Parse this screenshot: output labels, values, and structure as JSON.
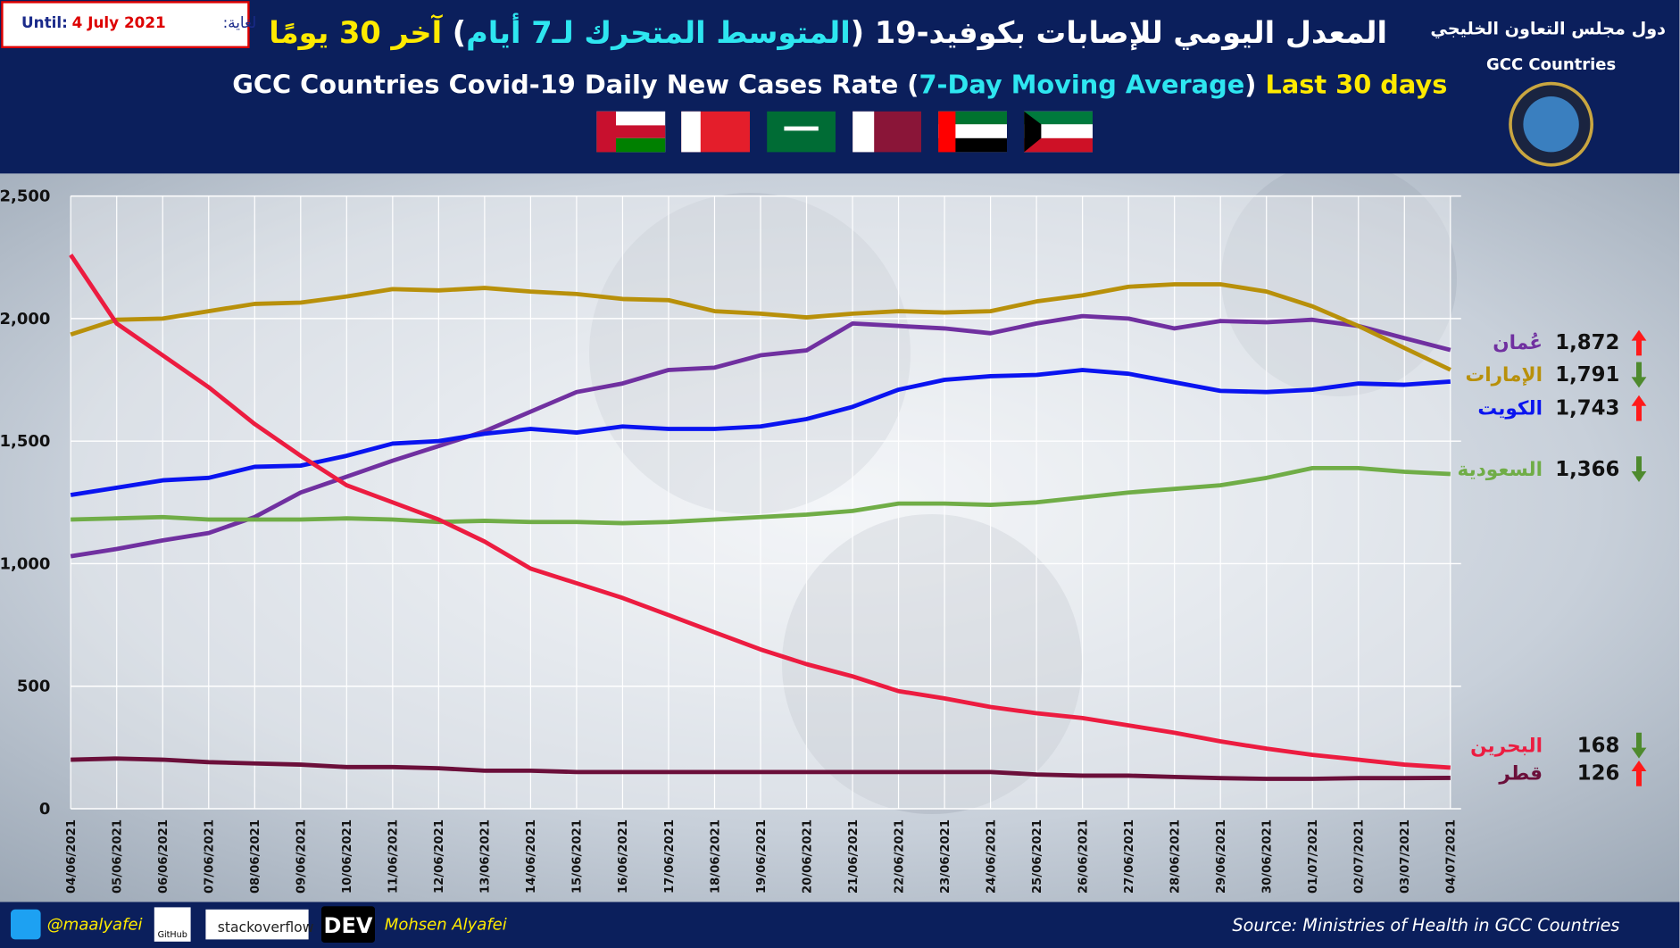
{
  "header": {
    "until_label": "Until:",
    "until_date": "4 July 2021",
    "until_label_ar": "لغاية:",
    "title_ar": [
      "المعدل اليومي للإصابات بكوفيد-19 (",
      "المتوسط المتحرك لـ7 أيام",
      ")",
      " آخر 30 يومًا"
    ],
    "title_en": [
      "GCC Countries Covid-19 Daily New Cases Rate (",
      "7-Day Moving Average",
      ")",
      " Last 30 days"
    ],
    "org_ar": "دول مجلس التعاون الخليجي",
    "org_en": "GCC Countries"
  },
  "footer": {
    "twitter": "@maalyafei",
    "github": "GitHub",
    "stackoverflow": "stackoverflow",
    "dev": "DEV",
    "author": "Mohsen Alyafei",
    "source": "Source: Ministries of Health in GCC Countries"
  },
  "chart_data": {
    "type": "line",
    "x": [
      "04/06/2021",
      "05/06/2021",
      "06/06/2021",
      "07/06/2021",
      "08/06/2021",
      "09/06/2021",
      "10/06/2021",
      "11/06/2021",
      "12/06/2021",
      "13/06/2021",
      "14/06/2021",
      "15/06/2021",
      "16/06/2021",
      "17/06/2021",
      "18/06/2021",
      "19/06/2021",
      "20/06/2021",
      "21/06/2021",
      "22/06/2021",
      "23/06/2021",
      "24/06/2021",
      "25/06/2021",
      "26/06/2021",
      "27/06/2021",
      "28/06/2021",
      "29/06/2021",
      "30/06/2021",
      "01/07/2021",
      "02/07/2021",
      "03/07/2021",
      "04/07/2021"
    ],
    "ylim": [
      0,
      2500
    ],
    "yticks": [
      0,
      500,
      {
        "value": 1000,
        "label": "1,000"
      },
      {
        "value": 1500,
        "label": "1,500"
      },
      {
        "value": 2000,
        "label": "2,000"
      },
      {
        "value": 2500,
        "label": "2,500"
      }
    ],
    "grid": true,
    "series": [
      {
        "name": "عُمان",
        "color": "#7030a0",
        "trend": "up",
        "last_label": "1,872",
        "values": [
          1030,
          1060,
          1095,
          1125,
          1190,
          1290,
          1355,
          1420,
          1480,
          1540,
          1620,
          1700,
          1735,
          1790,
          1800,
          1850,
          1870,
          1980,
          1970,
          1960,
          1940,
          1980,
          2010,
          2000,
          1960,
          1990,
          1985,
          1995,
          1970,
          1920,
          1872
        ]
      },
      {
        "name": "الإمارات",
        "color": "#b8900a",
        "trend": "down",
        "last_label": "1,791",
        "values": [
          1935,
          1995,
          2000,
          2030,
          2060,
          2065,
          2090,
          2120,
          2115,
          2125,
          2110,
          2100,
          2080,
          2075,
          2030,
          2020,
          2005,
          2020,
          2030,
          2025,
          2030,
          2070,
          2095,
          2130,
          2140,
          2140,
          2110,
          2050,
          1970,
          1880,
          1791
        ]
      },
      {
        "name": "الكويت",
        "color": "#0a14f0",
        "trend": "up",
        "last_label": "1,743",
        "values": [
          1280,
          1310,
          1340,
          1350,
          1395,
          1400,
          1440,
          1490,
          1500,
          1530,
          1550,
          1535,
          1560,
          1550,
          1550,
          1560,
          1590,
          1640,
          1710,
          1750,
          1765,
          1770,
          1790,
          1775,
          1740,
          1705,
          1700,
          1710,
          1735,
          1730,
          1743
        ]
      },
      {
        "name": "السعودية",
        "color": "#70ad47",
        "trend": "down",
        "last_label": "1,366",
        "values": [
          1180,
          1185,
          1190,
          1180,
          1180,
          1180,
          1185,
          1180,
          1170,
          1175,
          1170,
          1170,
          1165,
          1170,
          1180,
          1190,
          1200,
          1215,
          1245,
          1245,
          1240,
          1250,
          1270,
          1290,
          1305,
          1320,
          1350,
          1390,
          1390,
          1375,
          1366
        ]
      },
      {
        "name": "البحرين",
        "color": "#ec1c40",
        "trend": "down",
        "last_label": "168",
        "values": [
          2260,
          1980,
          1850,
          1720,
          1570,
          1440,
          1320,
          1250,
          1180,
          1090,
          980,
          920,
          860,
          790,
          720,
          650,
          590,
          540,
          480,
          450,
          415,
          390,
          370,
          340,
          310,
          275,
          245,
          220,
          200,
          180,
          168
        ]
      },
      {
        "name": "قطر",
        "color": "#6b0f3a",
        "trend": "up",
        "last_label": "126",
        "values": [
          200,
          205,
          200,
          190,
          185,
          180,
          170,
          170,
          165,
          155,
          155,
          150,
          150,
          150,
          150,
          150,
          150,
          150,
          150,
          150,
          150,
          140,
          135,
          135,
          130,
          125,
          122,
          122,
          125,
          125,
          126
        ]
      }
    ]
  }
}
